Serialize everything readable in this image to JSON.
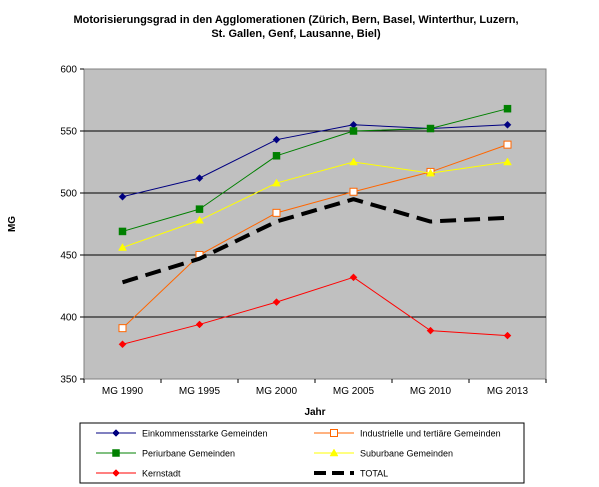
{
  "chart_data": {
    "type": "line",
    "title_line1": "Motorisierungsgrad in den Agglomerationen (Zürich, Bern, Basel, Winterthur, Luzern,",
    "title_line2": "St. Gallen, Genf, Lausanne, Biel)",
    "xlabel": "Jahr",
    "ylabel": "MG",
    "categories": [
      "MG 1990",
      "MG 1995",
      "MG 2000",
      "MG 2005",
      "MG 2010",
      "MG 2013"
    ],
    "ylim": [
      350,
      600
    ],
    "yticks": [
      "350",
      "400",
      "450",
      "500",
      "550",
      "600"
    ],
    "grid": true,
    "legend_placement": "bottom",
    "plot_background": "#c0c0c0",
    "series": [
      {
        "name": "Einkommensstarke Gemeinden",
        "values": [
          497,
          512,
          543,
          555,
          552,
          555
        ],
        "color": "#000080",
        "marker": "diamond",
        "dashed": false
      },
      {
        "name": "Industrielle und tertiäre Gemeinden",
        "values": [
          391,
          450,
          484,
          501,
          517,
          539
        ],
        "color": "#ff6600",
        "marker": "square-open",
        "dashed": false
      },
      {
        "name": "Periurbane Gemeinden",
        "values": [
          469,
          487,
          530,
          550,
          552,
          568
        ],
        "color": "#008000",
        "marker": "square",
        "dashed": false
      },
      {
        "name": "Suburbane Gemeinden",
        "values": [
          456,
          478,
          508,
          525,
          516,
          525
        ],
        "color": "#ffff00",
        "marker": "triangle",
        "dashed": false
      },
      {
        "name": "Kernstadt",
        "values": [
          378,
          394,
          412,
          432,
          389,
          385
        ],
        "color": "#ff0000",
        "marker": "diamond",
        "dashed": false
      },
      {
        "name": "TOTAL",
        "values": [
          428,
          447,
          477,
          495,
          477,
          480
        ],
        "color": "#000000",
        "marker": "none",
        "dashed": true
      }
    ]
  }
}
